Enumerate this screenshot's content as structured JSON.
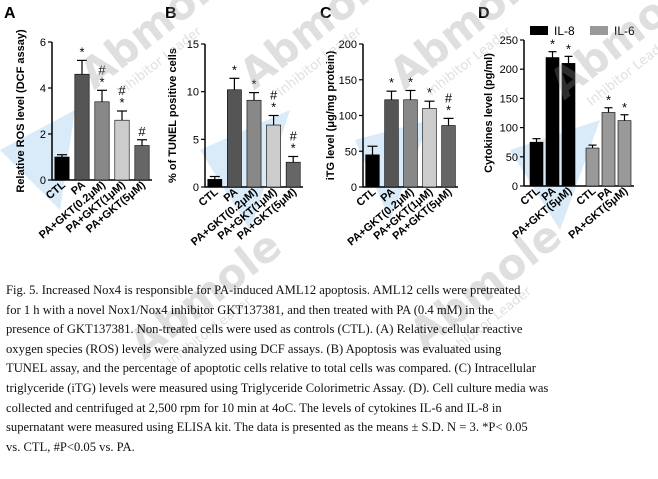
{
  "figure": {
    "panels": [
      "A",
      "B",
      "C",
      "D"
    ]
  },
  "chart_data": [
    {
      "type": "bar",
      "panel": "A",
      "ylabel": "Relative ROS level (DCF assay)",
      "ylim": [
        0,
        6
      ],
      "yticks": [
        "0",
        "2",
        "4",
        "6"
      ],
      "categories": [
        "CTL",
        "PA",
        "PA+GKT(0.2μM)",
        "PA+GKT(1μM)",
        "PA+GKT(5μM)"
      ],
      "values": [
        1.0,
        4.6,
        3.4,
        2.6,
        1.5
      ],
      "errors": [
        0.1,
        0.6,
        0.5,
        0.4,
        0.25
      ],
      "colors": [
        "#000000",
        "#555555",
        "#888888",
        "#cccccc",
        "#666666"
      ],
      "marks": [
        "",
        "*",
        "#\n*",
        "#\n*",
        "#"
      ]
    },
    {
      "type": "bar",
      "panel": "B",
      "ylabel": "% of TUNEL positive cells",
      "ylim": [
        0,
        15
      ],
      "yticks": [
        "0",
        "5",
        "10",
        "15"
      ],
      "categories": [
        "CTL",
        "PA",
        "PA+GKT(0.2μM)",
        "PA+GKT(1μM)",
        "PA+GKT(5μM)"
      ],
      "values": [
        0.8,
        10.2,
        9.1,
        6.5,
        2.6
      ],
      "errors": [
        0.3,
        1.2,
        0.8,
        1.0,
        0.6
      ],
      "colors": [
        "#000000",
        "#555555",
        "#888888",
        "#cccccc",
        "#666666"
      ],
      "marks": [
        "",
        "*",
        "*",
        "#\n*",
        "#\n*"
      ]
    },
    {
      "type": "bar",
      "panel": "C",
      "ylabel": "iTG level (μg/mg protein)",
      "ylim": [
        0,
        200
      ],
      "yticks": [
        "0",
        "50",
        "100",
        "150",
        "200"
      ],
      "categories": [
        "CTL",
        "PA",
        "PA+GKT(0.2μM)",
        "PA+GKT(1μM)",
        "PA+GKT(5μM)"
      ],
      "values": [
        45,
        122,
        122,
        110,
        86
      ],
      "errors": [
        12,
        12,
        13,
        10,
        10
      ],
      "colors": [
        "#000000",
        "#555555",
        "#888888",
        "#cccccc",
        "#666666"
      ],
      "marks": [
        "",
        "*",
        "*",
        "*",
        "#\n*"
      ]
    },
    {
      "type": "bar",
      "panel": "D",
      "ylabel": "Cytokines level (pg/ml)",
      "ylim": [
        0,
        250
      ],
      "yticks": [
        "0",
        "50",
        "100",
        "150",
        "200",
        "250"
      ],
      "legend": [
        "IL-8",
        "IL-6"
      ],
      "legend_colors": [
        "#000000",
        "#999999"
      ],
      "groups": [
        {
          "series": "IL-8",
          "categories": [
            "CTL",
            "PA",
            "PA+GKT(5μM)"
          ],
          "values": [
            75,
            220,
            210
          ],
          "errors": [
            6,
            10,
            12
          ],
          "marks": [
            "",
            "*",
            "*"
          ]
        },
        {
          "series": "IL-6",
          "categories": [
            "CTL",
            "PA",
            "PA+GKT(5μM)"
          ],
          "values": [
            65,
            126,
            112
          ],
          "errors": [
            5,
            8,
            10
          ],
          "marks": [
            "",
            "*",
            "*"
          ]
        }
      ]
    }
  ],
  "caption": [
    "Fig. 5. Increased Nox4 is responsible for PA-induced AML12 apoptosis. AML12 cells were pretreated",
    "for 1 h with a novel Nox1/Nox4 inhibitor GKT137381, and then treated with PA (0.4 mM) in the",
    "presence of GKT137381. Non-treated cells were used as controls (CTL). (A) Relative cellular reactive",
    "oxygen species (ROS) levels were analyzed using DCF assays. (B) Apoptosis was evaluated using",
    "TUNEL assay, and the percentage of apoptotic cells relative to total cells was compared. (C) Intracellular",
    "triglyceride (iTG) levels were measured using Triglyceride Colorimetric Assay. (D). Cell culture media was",
    "collected and centrifuged at 2,500 rpm for 10 min at 4oC. The levels of cytokines IL-6 and IL-8 in",
    "supernatant were measured using ELISA kit. The data is presented as the means ± S.D. N = 3. *P< 0.05",
    "vs. CTL, #P<0.05 vs. PA."
  ],
  "watermark": {
    "brand": "Abmole",
    "tagline": "Inhibitor Leader"
  }
}
